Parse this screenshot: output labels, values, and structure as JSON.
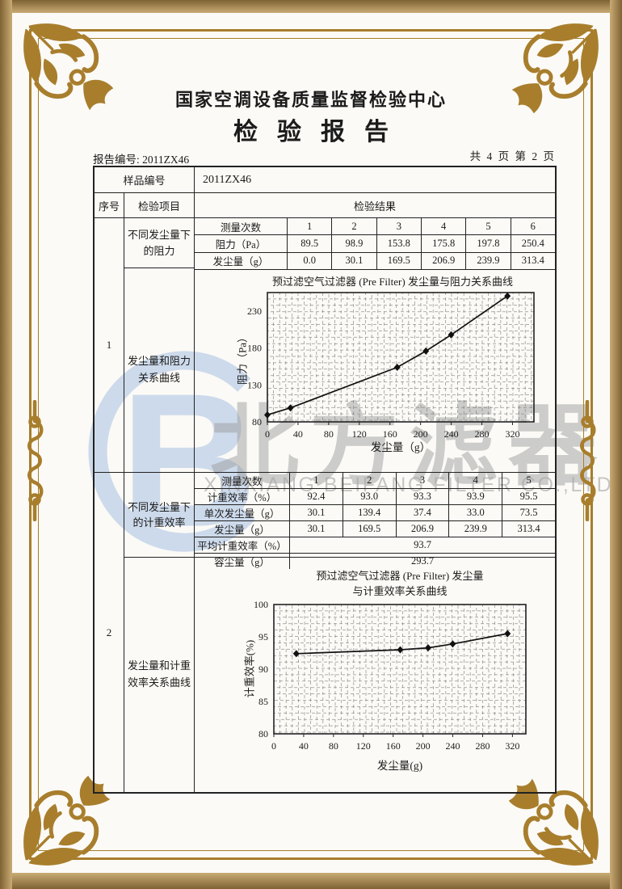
{
  "page": {
    "org_title": "国家空调设备质量监督检验中心",
    "report_title": "检验报告",
    "report_no": "报告编号: 2011ZX46",
    "page_info": "共 4 页 第 2 页"
  },
  "table": {
    "sample_label": "样品编号",
    "sample_value": "2011ZX46",
    "seq_header": "序号",
    "item_header": "检验项目",
    "result_header": "检验结果"
  },
  "section1": {
    "seq": "1",
    "item_top": "不同发尘量下的阻力",
    "item_bottom": "发尘量和阻力关系曲线",
    "meas_table": {
      "row_labels": [
        "测量次数",
        "阻力（Pa）",
        "发尘量（g）"
      ],
      "rows": [
        [
          "1",
          "2",
          "3",
          "4",
          "5",
          "6"
        ],
        [
          "89.5",
          "98.9",
          "153.8",
          "175.8",
          "197.8",
          "250.4"
        ],
        [
          "0.0",
          "30.1",
          "169.5",
          "206.9",
          "239.9",
          "313.4"
        ]
      ]
    }
  },
  "section2": {
    "seq": "2",
    "item_top": "不同发尘量下的计重效率",
    "item_bottom": "发尘量和计重效率关系曲线",
    "meas_table": {
      "row_labels": [
        "测量次数",
        "计重效率（%）",
        "单次发尘量（g）",
        "发尘量（g）"
      ],
      "rows": [
        [
          "1",
          "2",
          "3",
          "4",
          "5"
        ],
        [
          "92.4",
          "93.0",
          "93.3",
          "93.9",
          "95.5"
        ],
        [
          "30.1",
          "139.4",
          "37.4",
          "33.0",
          "73.5"
        ],
        [
          "30.1",
          "169.5",
          "206.9",
          "239.9",
          "313.4"
        ]
      ],
      "summary_rows": [
        {
          "label": "平均计重效率（%）",
          "value": "93.7"
        },
        {
          "label": "容尘量（g）",
          "value": "293.7"
        }
      ]
    }
  },
  "chart_data": [
    {
      "type": "line",
      "title": "预过滤空气过滤器 (Pre Filter) 发尘量与阻力关系曲线",
      "xlabel": "发尘量（g）",
      "ylabel": "阻力（Pa）",
      "x": [
        0,
        30.1,
        169.5,
        206.9,
        239.9,
        313.4
      ],
      "y": [
        89.5,
        98.9,
        153.8,
        175.8,
        197.8,
        250.4
      ],
      "xlim": [
        0,
        348
      ],
      "ylim": [
        80,
        255
      ],
      "xticks": [
        0,
        40,
        80,
        120,
        160,
        200,
        240,
        280,
        320
      ],
      "yticks": [
        80,
        130,
        180,
        230
      ],
      "grid": true,
      "legend": "none",
      "marker": "diamond"
    },
    {
      "type": "line",
      "title": "预过滤空气过滤器 (Pre Filter) 发尘量",
      "title2": "与计重效率关系曲线",
      "xlabel": "发尘量(g)",
      "ylabel": "计重效率(%)",
      "x": [
        30.1,
        169.5,
        206.9,
        239.9,
        313.4
      ],
      "y": [
        92.4,
        93.0,
        93.3,
        93.9,
        95.5
      ],
      "xlim": [
        0,
        338
      ],
      "ylim": [
        80,
        100
      ],
      "xticks": [
        0,
        40,
        80,
        120,
        160,
        200,
        240,
        280,
        320
      ],
      "yticks": [
        80,
        85,
        90,
        95,
        100
      ],
      "grid": true,
      "legend": "none",
      "marker": "diamond"
    }
  ],
  "watermark": {
    "logo_letter": "B",
    "cjk_text": "北方滤器",
    "latin_text": "XINXIANG BEIFANG FILTER CO.,LTD."
  },
  "colors": {
    "frame_gold": "#a87d2c",
    "band_tan": "#c9ab74",
    "watermark_blue": "#c9d7ea",
    "watermark_gray": "#9b9b9b",
    "table_line": "#222222"
  }
}
